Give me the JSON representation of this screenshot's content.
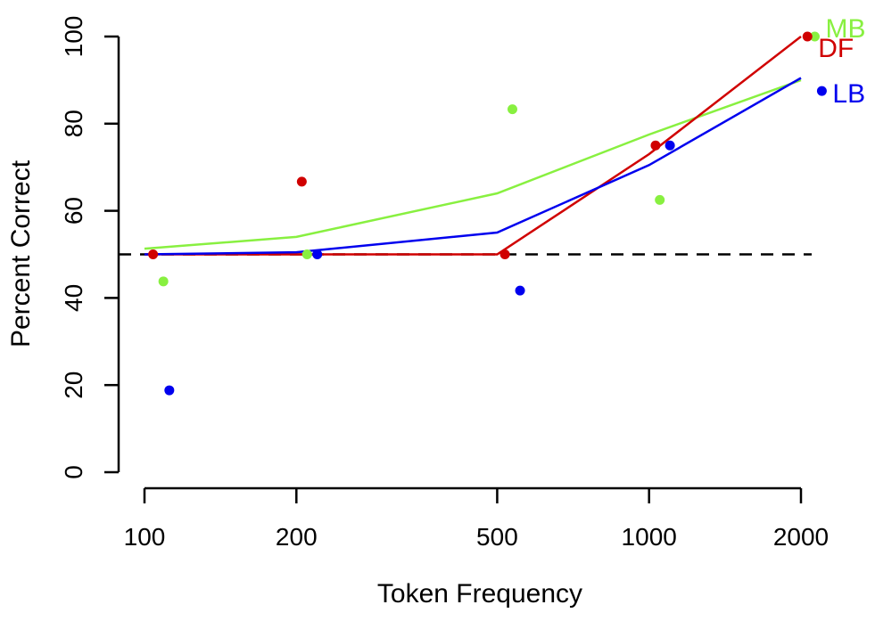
{
  "chart_data": {
    "type": "scatter",
    "xscale": "log",
    "xlabel": "Token Frequency",
    "ylabel": "Percent Correct",
    "xlim": [
      100,
      2000
    ],
    "ylim": [
      0,
      100
    ],
    "xticks": [
      100,
      200,
      500,
      1000,
      2000
    ],
    "yticks": [
      0,
      20,
      40,
      60,
      80,
      100
    ],
    "reference_line": {
      "y": 50,
      "style": "dashed",
      "color": "#000000"
    },
    "series": [
      {
        "name": "MB",
        "color": "#88f040",
        "points": [
          {
            "x": 109,
            "y": 43.8
          },
          {
            "x": 210,
            "y": 50
          },
          {
            "x": 536,
            "y": 83.3
          },
          {
            "x": 1050,
            "y": 62.5
          },
          {
            "x": 2130,
            "y": 100
          }
        ],
        "fit": [
          {
            "x": 100,
            "y": 51.3
          },
          {
            "x": 200,
            "y": 54
          },
          {
            "x": 500,
            "y": 64
          },
          {
            "x": 1000,
            "y": 77.5
          },
          {
            "x": 2000,
            "y": 90
          }
        ]
      },
      {
        "name": "DF",
        "color": "#d00000",
        "points": [
          {
            "x": 104,
            "y": 50
          },
          {
            "x": 205,
            "y": 66.7
          },
          {
            "x": 518,
            "y": 50
          },
          {
            "x": 1030,
            "y": 75
          },
          {
            "x": 2060,
            "y": 100
          }
        ],
        "fit": [
          {
            "x": 100,
            "y": 50
          },
          {
            "x": 500,
            "y": 50
          },
          {
            "x": 1000,
            "y": 73
          },
          {
            "x": 2000,
            "y": 100
          }
        ]
      },
      {
        "name": "LB",
        "color": "#0000ee",
        "points": [
          {
            "x": 112,
            "y": 18.8
          },
          {
            "x": 220,
            "y": 50
          },
          {
            "x": 555,
            "y": 41.7
          },
          {
            "x": 1100,
            "y": 75
          },
          {
            "x": 2200,
            "y": 87.5
          }
        ],
        "fit": [
          {
            "x": 100,
            "y": 50
          },
          {
            "x": 200,
            "y": 50.5
          },
          {
            "x": 500,
            "y": 55
          },
          {
            "x": 1000,
            "y": 70.5
          },
          {
            "x": 2000,
            "y": 90.5
          }
        ]
      }
    ]
  }
}
